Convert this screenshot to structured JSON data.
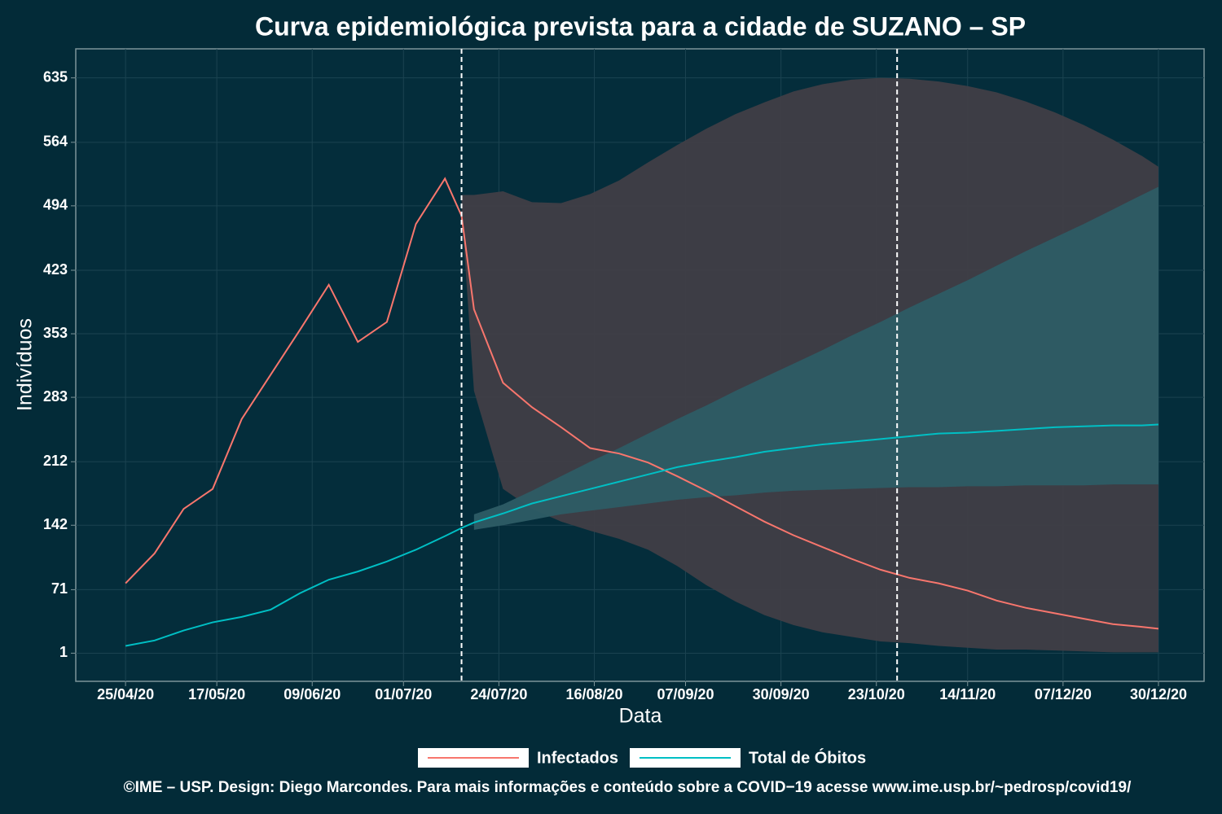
{
  "chart_data": {
    "type": "line",
    "title": "Curva epidemiológica prevista para a cidade de SUZANO – SP",
    "x_label": "Data",
    "y_label": "Indivíduos",
    "caption": "©IME – USP. Design: Diego Marcondes. Para mais informações e conteúdo sobre a COVID−19 acesse www.ime.usp.br/~pedrosp/covid19/",
    "x": [
      "2020-04-25",
      "2020-05-02",
      "2020-05-09",
      "2020-05-16",
      "2020-05-23",
      "2020-05-30",
      "2020-06-06",
      "2020-06-13",
      "2020-06-20",
      "2020-06-27",
      "2020-07-04",
      "2020-07-11",
      "2020-07-15",
      "2020-07-18",
      "2020-07-25",
      "2020-08-01",
      "2020-08-08",
      "2020-08-15",
      "2020-08-22",
      "2020-08-29",
      "2020-09-05",
      "2020-09-12",
      "2020-09-19",
      "2020-09-26",
      "2020-10-03",
      "2020-10-10",
      "2020-10-17",
      "2020-10-24",
      "2020-10-31",
      "2020-11-07",
      "2020-11-14",
      "2020-11-21",
      "2020-11-28",
      "2020-12-05",
      "2020-12-12",
      "2020-12-19",
      "2020-12-26",
      "2020-12-30"
    ],
    "series": [
      {
        "name": "Infectados",
        "color": "#f8766d",
        "values": [
          78,
          111,
          160,
          182,
          259,
          308,
          357,
          407,
          344,
          366,
          474,
          524,
          483,
          380,
          299,
          272,
          250,
          227,
          221,
          211,
          196,
          180,
          163,
          146,
          131,
          118,
          105,
          93,
          84,
          78,
          70,
          59,
          51,
          45,
          39,
          33,
          30,
          28
        ]
      },
      {
        "name": "Total de Óbitos",
        "color": "#00bfc4",
        "values": [
          9,
          15,
          26,
          35,
          41,
          49,
          67,
          82,
          91,
          102,
          115,
          130,
          139,
          145,
          155,
          166,
          174,
          182,
          190,
          198,
          206,
          212,
          217,
          223,
          227,
          231,
          234,
          237,
          240,
          243,
          244,
          246,
          248,
          250,
          251,
          252,
          252,
          253
        ]
      }
    ],
    "bands": [
      {
        "color": "#403e46",
        "lower": [
          null,
          null,
          null,
          null,
          null,
          null,
          null,
          null,
          null,
          null,
          null,
          null,
          488,
          290,
          182,
          160,
          146,
          136,
          127,
          115,
          97,
          76,
          58,
          43,
          32,
          24,
          19,
          14,
          12,
          9,
          7,
          5,
          5,
          4,
          3,
          2,
          2,
          2
        ],
        "upper": [
          null,
          null,
          null,
          null,
          null,
          null,
          null,
          null,
          null,
          null,
          null,
          null,
          506,
          506,
          510,
          498,
          497,
          507,
          522,
          542,
          561,
          579,
          595,
          608,
          620,
          628,
          633,
          635,
          634,
          631,
          626,
          619,
          609,
          597,
          583,
          567,
          549,
          537
        ]
      },
      {
        "color": "#2d5c65",
        "lower": [
          null,
          null,
          null,
          null,
          null,
          null,
          null,
          null,
          null,
          null,
          null,
          null,
          null,
          137,
          142,
          148,
          154,
          158,
          162,
          166,
          170,
          173,
          175,
          178,
          180,
          181,
          182,
          183,
          184,
          184,
          185,
          185,
          186,
          186,
          186,
          187,
          187,
          187
        ],
        "upper": [
          null,
          null,
          null,
          null,
          null,
          null,
          null,
          null,
          null,
          null,
          null,
          null,
          null,
          154,
          165,
          180,
          196,
          212,
          227,
          243,
          259,
          274,
          290,
          305,
          320,
          335,
          351,
          366,
          382,
          397,
          412,
          428,
          444,
          459,
          474,
          490,
          506,
          515
        ]
      }
    ],
    "vlines": [
      "2020-07-15",
      "2020-10-28"
    ],
    "xlim": [
      "2020-04-13",
      "2021-01-10"
    ],
    "xticks": [
      {
        "value": "2020-04-25",
        "label": "25/04/20"
      },
      {
        "value": "2020-05-17",
        "label": "17/05/20"
      },
      {
        "value": "2020-06-09",
        "label": "09/06/20"
      },
      {
        "value": "2020-07-01",
        "label": "01/07/20"
      },
      {
        "value": "2020-07-24",
        "label": "24/07/20"
      },
      {
        "value": "2020-08-16",
        "label": "16/08/20"
      },
      {
        "value": "2020-09-07",
        "label": "07/09/20"
      },
      {
        "value": "2020-09-30",
        "label": "30/09/20"
      },
      {
        "value": "2020-10-23",
        "label": "23/10/20"
      },
      {
        "value": "2020-11-14",
        "label": "14/11/20"
      },
      {
        "value": "2020-12-07",
        "label": "07/12/20"
      },
      {
        "value": "2020-12-30",
        "label": "30/12/20"
      }
    ],
    "ylim": [
      -30,
      667
    ],
    "yticks": [
      1,
      71,
      142,
      212,
      283,
      353,
      423,
      494,
      564,
      635
    ],
    "grid": true
  }
}
